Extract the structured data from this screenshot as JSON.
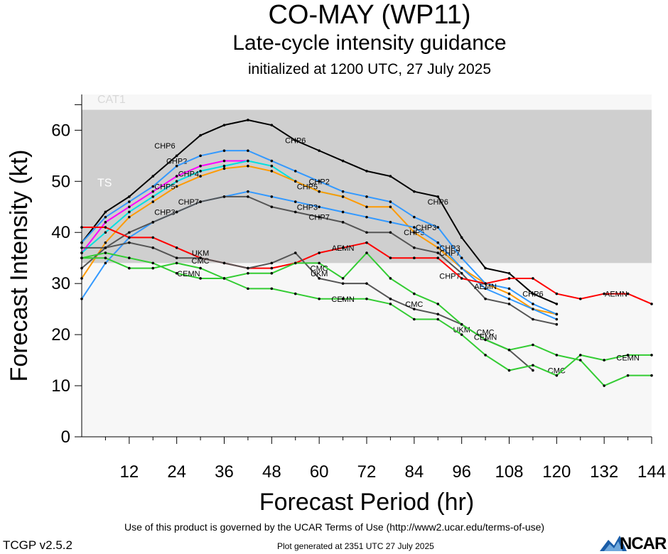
{
  "header": {
    "title": "CO-MAY (WP11)",
    "subtitle": "Late-cycle intensity guidance",
    "init": "initialized at 1200 UTC, 27 July 2025"
  },
  "footer": {
    "terms": "Use of this product is governed by the UCAR Terms of Use (http://www2.ucar.edu/terms-of-use)",
    "version": "TCGP v2.5.2",
    "generated": "Plot generated at 2351 UTC   27 July 2025",
    "logo": "NCAR"
  },
  "chart_data": {
    "type": "line",
    "xlabel": "Forecast Period (hr)",
    "ylabel": "Forecast Intensity (kt)",
    "xlim": [
      0,
      144
    ],
    "ylim": [
      0,
      67
    ],
    "xticks": [
      12,
      24,
      36,
      48,
      60,
      72,
      84,
      96,
      108,
      120,
      132,
      144
    ],
    "yticks": [
      0,
      10,
      20,
      30,
      40,
      50,
      60
    ],
    "bands": [
      {
        "label": "CAT1",
        "from": 64,
        "to": 67,
        "color": "#f7f7f7",
        "text_color": "#d8d8d8"
      },
      {
        "label": "TS",
        "from": 34,
        "to": 64,
        "color": "#cfcfcf",
        "text_color": "#ffffff"
      },
      {
        "label": "",
        "from": 0,
        "to": 34,
        "color": "#f7f7f7"
      }
    ],
    "series": [
      {
        "name": "CHP6",
        "color": "#000000",
        "x": [
          0,
          6,
          12,
          18,
          24,
          30,
          36,
          42,
          48,
          54,
          60,
          66,
          72,
          78,
          84,
          90,
          96,
          102,
          108,
          114,
          120
        ],
        "y": [
          38,
          44,
          47,
          51,
          55,
          59,
          61,
          62,
          61,
          58,
          56,
          54,
          52,
          51,
          48,
          47,
          39,
          33,
          32,
          28,
          26
        ],
        "labels": [
          [
            21,
            57
          ],
          [
            54,
            58
          ],
          [
            90,
            46
          ],
          [
            114,
            28
          ]
        ]
      },
      {
        "name": "CHP2",
        "color": "#ff00ff",
        "x": [
          0,
          6,
          12,
          18,
          24,
          30,
          36,
          42
        ],
        "y": [
          36,
          42,
          45,
          48,
          51,
          53,
          54,
          54
        ],
        "labels": [
          [
            24,
            54
          ]
        ]
      },
      {
        "name": "CHP4",
        "color": "#00e0e0",
        "x": [
          0,
          6,
          12,
          18,
          24,
          30,
          36,
          42,
          48,
          54,
          60,
          66
        ],
        "y": [
          36,
          40,
          44,
          47,
          50,
          52,
          53,
          54,
          53,
          50,
          48,
          47
        ],
        "labels": [
          [
            27,
            51.5
          ]
        ]
      },
      {
        "name": "CHP5",
        "color": "#ff9a00",
        "x": [
          0,
          6,
          12,
          18,
          24,
          30,
          36,
          42,
          48,
          54,
          60,
          66,
          72,
          78,
          84,
          90,
          96,
          102,
          108,
          114,
          120
        ],
        "y": [
          31,
          38,
          43,
          46,
          49,
          51,
          52.5,
          53,
          52,
          50,
          48,
          47,
          45,
          45,
          40,
          37,
          33,
          30,
          28,
          25,
          24
        ],
        "labels": [
          [
            21,
            49
          ],
          [
            57,
            49
          ],
          [
            84,
            40
          ]
        ]
      },
      {
        "name": "CHP2",
        "color": "#3399ff",
        "x": [
          0,
          6,
          12,
          18,
          24,
          30,
          36,
          42,
          48,
          54,
          60,
          66,
          72,
          78,
          84,
          90,
          96,
          102,
          108,
          114,
          120
        ],
        "y": [
          38,
          43,
          46,
          49,
          53,
          55,
          56,
          56,
          54,
          52,
          50,
          48,
          47,
          46,
          43,
          41,
          35,
          30,
          29,
          26,
          24
        ],
        "labels": [
          [
            60,
            50
          ]
        ]
      },
      {
        "name": "CHP3",
        "color": "#3399ff",
        "x": [
          0,
          6,
          12,
          18,
          24,
          30,
          36,
          42,
          48,
          54,
          60,
          66,
          72,
          78,
          84,
          90,
          96,
          102,
          108,
          114,
          120
        ],
        "y": [
          27,
          34,
          39,
          42,
          44,
          46,
          47,
          48,
          47,
          46,
          45,
          44,
          43,
          42,
          41,
          38,
          33,
          29,
          27,
          25,
          23
        ],
        "labels": [
          [
            21,
            44
          ],
          [
            57,
            45
          ],
          [
            87,
            41
          ],
          [
            93,
            37
          ]
        ]
      },
      {
        "name": "CHP7",
        "color": "#555555",
        "x": [
          0,
          6,
          12,
          18,
          24,
          30,
          36,
          42,
          48,
          54,
          60,
          66,
          72,
          78,
          84,
          90,
          96,
          102,
          108,
          114,
          120
        ],
        "y": [
          33,
          37,
          40,
          42,
          44,
          46,
          47,
          47,
          45,
          44,
          43,
          42,
          40,
          40,
          37,
          36,
          32,
          27,
          26,
          23,
          22
        ],
        "labels": [
          [
            27,
            46
          ],
          [
            60,
            43
          ],
          [
            93,
            36
          ],
          [
            93,
            31.5
          ]
        ]
      },
      {
        "name": "AEMN",
        "color": "#ff0000",
        "x": [
          0,
          6,
          12,
          18,
          24,
          30,
          36,
          42,
          48,
          54,
          60,
          66,
          72,
          78,
          84,
          90,
          96,
          102,
          108,
          114,
          120,
          126,
          132,
          138,
          144
        ],
        "y": [
          41,
          41,
          39,
          39,
          37,
          35,
          34,
          33,
          33,
          34,
          36,
          37,
          38,
          35,
          35,
          35,
          31,
          30,
          31,
          31,
          28,
          27,
          28,
          28,
          26
        ],
        "labels": [
          [
            66,
            37
          ],
          [
            102,
            29.5
          ],
          [
            135,
            28
          ]
        ]
      },
      {
        "name": "UKM",
        "color": "#555555",
        "x": [
          0,
          6,
          12,
          18,
          24,
          30,
          36,
          42,
          48,
          54,
          60,
          66,
          72,
          78,
          84,
          90,
          96,
          102,
          108,
          114
        ],
        "y": [
          37,
          37,
          38,
          37,
          35,
          35,
          34,
          33,
          34,
          36,
          31,
          30,
          30,
          27,
          25,
          24,
          22,
          19,
          17,
          13
        ],
        "labels": [
          [
            30,
            36
          ],
          [
            60,
            32
          ],
          [
            96,
            21
          ]
        ]
      },
      {
        "name": "CMC",
        "color": "#33cc33",
        "x": [
          0,
          6,
          12,
          18,
          24,
          30,
          36,
          42,
          48,
          54,
          60,
          66,
          72,
          78,
          84,
          90,
          96,
          102,
          108,
          114,
          120,
          126,
          132,
          138,
          144
        ],
        "y": [
          35,
          35,
          33,
          33,
          34,
          33,
          31,
          32,
          32,
          34,
          34,
          31,
          36,
          31,
          28,
          26,
          22,
          19,
          17,
          18,
          16,
          15,
          10,
          12,
          12
        ],
        "labels": [
          [
            30,
            34.5
          ],
          [
            60,
            33
          ],
          [
            84,
            26
          ],
          [
            102,
            20.5
          ],
          [
            120,
            13
          ]
        ]
      },
      {
        "name": "CEMN",
        "color": "#33cc33",
        "x": [
          0,
          6,
          12,
          18,
          24,
          30,
          36,
          42,
          48,
          54,
          60,
          66,
          72,
          78,
          84,
          90,
          96,
          102,
          108,
          114,
          120,
          126,
          132,
          138,
          144
        ],
        "y": [
          35,
          36,
          35,
          34,
          32,
          31,
          31,
          29,
          29,
          28,
          27,
          27,
          27,
          26,
          23,
          23,
          20,
          16,
          13,
          14,
          12,
          16,
          15,
          16,
          16
        ],
        "labels": [
          [
            27,
            32
          ],
          [
            66,
            27
          ],
          [
            102,
            19.5
          ],
          [
            138,
            15.5
          ]
        ]
      }
    ]
  }
}
